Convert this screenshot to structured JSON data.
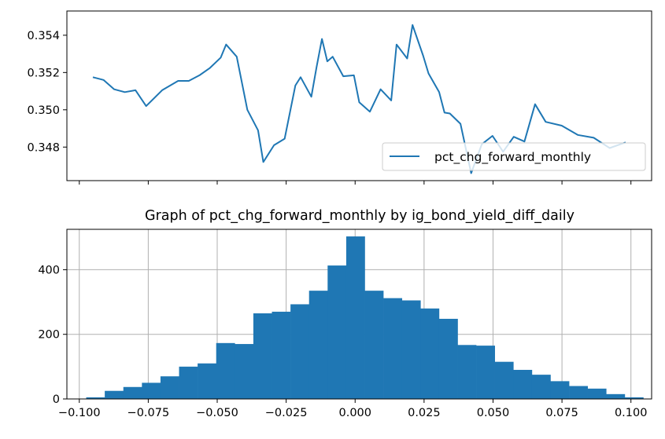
{
  "chart_data": [
    {
      "type": "line",
      "title": "",
      "xlabel": "",
      "ylabel": "",
      "ylim": [
        0.3462,
        0.3553
      ],
      "yticks": [
        0.348,
        0.35,
        0.352,
        0.354
      ],
      "ytick_labels": [
        "0.348",
        "0.350",
        "0.352",
        "0.354"
      ],
      "legend_position": "lower right",
      "grid": false,
      "series": [
        {
          "name": "pct_chg_forward_monthly",
          "color": "#1f77b4",
          "x": [
            0.0,
            0.02,
            0.04,
            0.06,
            0.08,
            0.1,
            0.13,
            0.16,
            0.18,
            0.2,
            0.22,
            0.24,
            0.25,
            0.27,
            0.29,
            0.31,
            0.32,
            0.34,
            0.36,
            0.38,
            0.39,
            0.41,
            0.42,
            0.43,
            0.44,
            0.45,
            0.47,
            0.49,
            0.5,
            0.52,
            0.54,
            0.56,
            0.57,
            0.59,
            0.6,
            0.62,
            0.63,
            0.65,
            0.66,
            0.67,
            0.69,
            0.71,
            0.73,
            0.75,
            0.77,
            0.79,
            0.81,
            0.83,
            0.85,
            0.88,
            0.91,
            0.94,
            0.97,
            1.0
          ],
          "values": [
            0.35175,
            0.3516,
            0.3511,
            0.35095,
            0.35105,
            0.3502,
            0.35105,
            0.35155,
            0.35155,
            0.35185,
            0.35225,
            0.3528,
            0.3535,
            0.35285,
            0.35,
            0.3489,
            0.3472,
            0.3481,
            0.34845,
            0.3513,
            0.35175,
            0.3507,
            0.3523,
            0.3538,
            0.3526,
            0.35285,
            0.3518,
            0.35185,
            0.3504,
            0.3499,
            0.3511,
            0.3505,
            0.3535,
            0.35275,
            0.35455,
            0.3529,
            0.35195,
            0.35095,
            0.34985,
            0.3498,
            0.34925,
            0.3466,
            0.34815,
            0.3486,
            0.34775,
            0.34855,
            0.3483,
            0.3503,
            0.34935,
            0.34915,
            0.34865,
            0.3485,
            0.34795,
            0.34825
          ]
        }
      ]
    },
    {
      "type": "bar",
      "title": "Graph of pct_chg_forward_monthly by ig_bond_yield_diff_daily",
      "xlabel": "",
      "ylabel": "",
      "xlim": [
        -0.1045,
        0.1075
      ],
      "ylim": [
        0,
        525
      ],
      "xticks": [
        -0.1,
        -0.075,
        -0.05,
        -0.025,
        0.0,
        0.025,
        0.05,
        0.075,
        0.1
      ],
      "xtick_labels": [
        "−0.100",
        "−0.075",
        "−0.050",
        "−0.025",
        "0.000",
        "0.025",
        "0.050",
        "0.075",
        "0.100"
      ],
      "yticks": [
        0,
        200,
        400
      ],
      "ytick_labels": [
        "0",
        "200",
        "400"
      ],
      "grid": true,
      "color": "#1f77b4",
      "bin_edges": [
        -0.0975,
        -0.09077,
        -0.08403,
        -0.0773,
        -0.07057,
        -0.06383,
        -0.0571,
        -0.05037,
        -0.04363,
        -0.0369,
        -0.03017,
        -0.02343,
        -0.0167,
        -0.00997,
        -0.00323,
        0.0035,
        0.01023,
        0.01697,
        0.0237,
        0.03043,
        0.03717,
        0.0439,
        0.05063,
        0.05737,
        0.0641,
        0.07083,
        0.07757,
        0.0843,
        0.09103,
        0.09777,
        0.1045
      ],
      "values": [
        5,
        25,
        37,
        50,
        70,
        100,
        110,
        173,
        170,
        265,
        270,
        293,
        335,
        413,
        503,
        335,
        312,
        305,
        280,
        248,
        167,
        165,
        115,
        90,
        75,
        55,
        40,
        32,
        15,
        5
      ]
    }
  ]
}
